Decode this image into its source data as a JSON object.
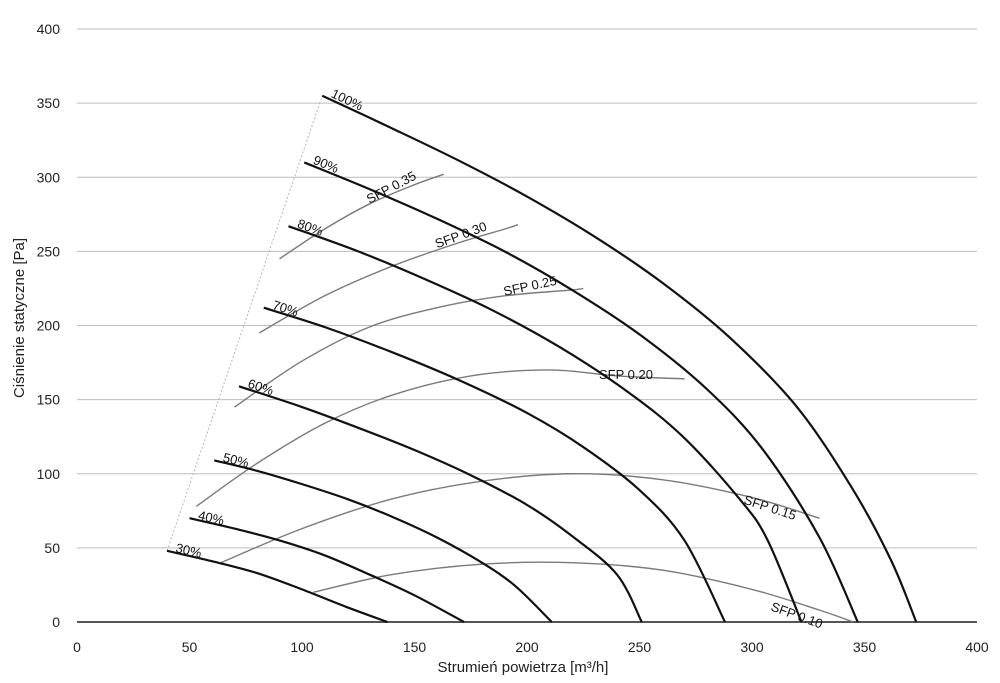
{
  "chart_data": {
    "type": "line",
    "title": "",
    "xlabel": "Strumień powietrza [m³/h]",
    "ylabel": "Ciśnienie statyczne [Pa]",
    "xlim": [
      0,
      400
    ],
    "ylim": [
      0,
      400
    ],
    "x_ticks": [
      "0",
      "50",
      "100",
      "150",
      "200",
      "250",
      "300",
      "350",
      "400"
    ],
    "y_ticks": [
      "0",
      "50",
      "100",
      "150",
      "200",
      "250",
      "300",
      "350",
      "400"
    ],
    "grid": "horizontal",
    "fan_curves": [
      {
        "name": "30%",
        "x": [
          40,
          60,
          80,
          100,
          120,
          138
        ],
        "y": [
          48,
          41,
          33,
          22,
          10,
          0
        ]
      },
      {
        "name": "40%",
        "x": [
          50,
          70,
          90,
          110,
          130,
          150,
          172
        ],
        "y": [
          70,
          63,
          55,
          45,
          32,
          18,
          0
        ]
      },
      {
        "name": "50%",
        "x": [
          61,
          80,
          100,
          120,
          140,
          160,
          180,
          195,
          211
        ],
        "y": [
          109,
          102,
          93,
          83,
          71,
          57,
          40,
          24,
          0
        ]
      },
      {
        "name": "60%",
        "x": [
          72,
          100,
          125,
          150,
          175,
          200,
          220,
          240,
          251
        ],
        "y": [
          159,
          145,
          131,
          116,
          99,
          79,
          58,
          32,
          0
        ]
      },
      {
        "name": "70%",
        "x": [
          83,
          110,
          140,
          170,
          200,
          225,
          250,
          270,
          288
        ],
        "y": [
          212,
          199,
          182,
          163,
          141,
          118,
          89,
          55,
          0
        ]
      },
      {
        "name": "80%",
        "x": [
          94,
          125,
          155,
          185,
          215,
          245,
          270,
          295,
          307,
          322
        ],
        "y": [
          267,
          250,
          231,
          210,
          185,
          155,
          124,
          82,
          55,
          0
        ]
      },
      {
        "name": "90%",
        "x": [
          101,
          130,
          160,
          190,
          220,
          250,
          280,
          305,
          330,
          347
        ],
        "y": [
          310,
          292,
          272,
          250,
          224,
          194,
          157,
          116,
          57,
          0
        ]
      },
      {
        "name": "100%",
        "x": [
          109,
          140,
          170,
          200,
          230,
          260,
          290,
          320,
          345,
          362,
          373
        ],
        "y": [
          355,
          333,
          311,
          287,
          260,
          229,
          192,
          145,
          89,
          41,
          0
        ]
      }
    ],
    "sfp_curves": [
      {
        "name": "SFP 0.10",
        "x": [
          105,
          140,
          180,
          220,
          260,
          300,
          330,
          345
        ],
        "y": [
          20,
          32,
          39,
          40,
          35,
          22,
          8,
          0
        ]
      },
      {
        "name": "SFP 0.15",
        "x": [
          64,
          100,
          140,
          180,
          220,
          260,
          300,
          330
        ],
        "y": [
          40,
          63,
          83,
          95,
          100,
          96,
          84,
          70
        ]
      },
      {
        "name": "SFP 0.20",
        "x": [
          53,
          80,
          110,
          140,
          175,
          210,
          240,
          270
        ],
        "y": [
          78,
          107,
          134,
          153,
          166,
          170,
          166,
          164
        ]
      },
      {
        "name": "SFP 0.25",
        "x": [
          70,
          100,
          130,
          160,
          190,
          220,
          225
        ],
        "y": [
          145,
          176,
          199,
          212,
          220,
          224,
          225
        ]
      },
      {
        "name": "SFP 0.30",
        "x": [
          81,
          110,
          140,
          170,
          190,
          196
        ],
        "y": [
          195,
          220,
          240,
          256,
          265,
          268
        ]
      },
      {
        "name": "SFP 0.35",
        "x": [
          90,
          110,
          130,
          150,
          163
        ],
        "y": [
          245,
          265,
          282,
          295,
          302
        ]
      }
    ],
    "envelope": {
      "x": [
        40,
        109
      ],
      "y": [
        48,
        355
      ]
    }
  }
}
